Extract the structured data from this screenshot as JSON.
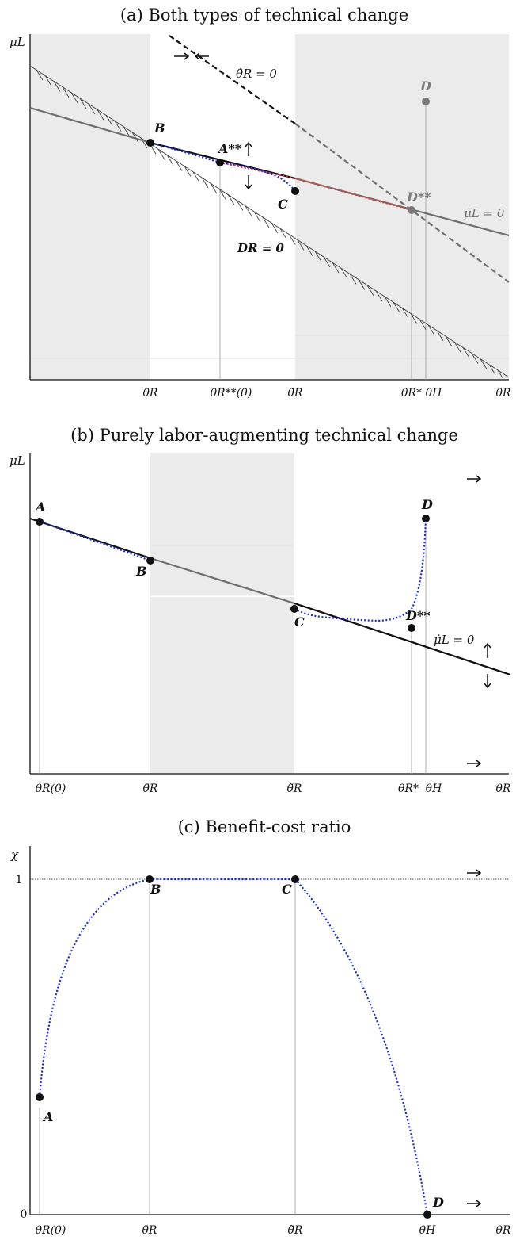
{
  "chart_data": [
    {
      "type": "line",
      "title": "(a) Both types of technical change",
      "ylabel": "μL",
      "xlabel": "θR",
      "x_ticks": [
        "θ̄R",
        "θR**(0)",
        "θ̃R",
        "θR*",
        "θH",
        "θR"
      ],
      "curve_labels": {
        "theta_dot": "θ̇R = 0",
        "mu_dot": "μ̇L = 0",
        "dr": "DR = 0"
      },
      "points": [
        {
          "name": "B",
          "label": "B"
        },
        {
          "name": "A",
          "label": "A**"
        },
        {
          "name": "C",
          "label": "C"
        },
        {
          "name": "D",
          "label": "D"
        },
        {
          "name": "Dss",
          "label": "D**"
        }
      ],
      "shaded_regions": [
        "left of θ̄R",
        "right of θ̃R"
      ],
      "grid": false
    },
    {
      "type": "line",
      "title": "(b) Purely labor-augmenting technical change",
      "ylabel": "μL",
      "xlabel": "θR",
      "x_ticks": [
        "θR(0)",
        "θ̄R",
        "θ̃R",
        "θR*",
        "θH",
        "θR"
      ],
      "curve_labels": {
        "mu_dot": "μ̇L = 0"
      },
      "points": [
        {
          "name": "A",
          "label": "A"
        },
        {
          "name": "B",
          "label": "B"
        },
        {
          "name": "C",
          "label": "C"
        },
        {
          "name": "D",
          "label": "D"
        },
        {
          "name": "Dss",
          "label": "D**"
        }
      ],
      "shaded_regions": [
        "between θ̄R and θ̃R"
      ],
      "grid": false
    },
    {
      "type": "line",
      "title": "(c) Benefit-cost ratio",
      "ylabel": "χ",
      "xlabel": "θR",
      "y_ticks": [
        "0",
        "1"
      ],
      "x_ticks": [
        "θR(0)",
        "θ̄R",
        "θ̃R",
        "θH",
        "θR"
      ],
      "series": [
        {
          "points": [
            [
              "θR(0)",
              0.35
            ],
            [
              "θ̄R",
              1
            ],
            [
              "θ̃R",
              1
            ],
            [
              "θH",
              0
            ]
          ]
        }
      ],
      "points": [
        {
          "name": "A",
          "label": "A",
          "value": 0.35
        },
        {
          "name": "B",
          "label": "B",
          "value": 1
        },
        {
          "name": "C",
          "label": "C",
          "value": 1
        },
        {
          "name": "D",
          "label": "D",
          "value": 0
        }
      ],
      "ylim": [
        0,
        1
      ],
      "grid": false
    }
  ],
  "colors": {
    "path": "#1a2bd6",
    "path_red": "#e04040",
    "shade": "#ebebeb",
    "line_dark": "#111111",
    "line_grey": "#6e6e6e",
    "hatch": "#444444",
    "point_grey": "#7a7a7a"
  }
}
